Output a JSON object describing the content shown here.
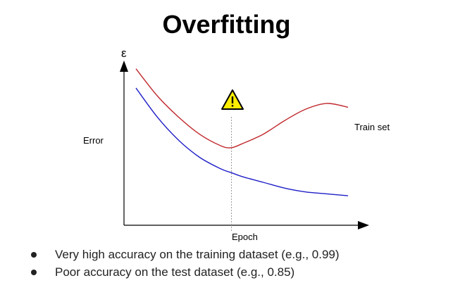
{
  "title": "Overfitting",
  "chart_data": {
    "type": "line",
    "y_axis_symbol": "ε",
    "ylabel": "Error",
    "xlabel": "Epoch",
    "grid": false,
    "warning_icon": "warning-triangle-icon",
    "series": [
      {
        "name": "Train set",
        "color": "#c0282d",
        "x": [
          0.0,
          0.1,
          0.2,
          0.3,
          0.4,
          0.45,
          0.5,
          0.6,
          0.7,
          0.8,
          0.9,
          1.0
        ],
        "y": [
          0.74,
          0.6,
          0.49,
          0.4,
          0.34,
          0.33,
          0.35,
          0.4,
          0.47,
          0.53,
          0.56,
          0.54
        ]
      },
      {
        "color": "#1e1ec8",
        "x": [
          0.0,
          0.1,
          0.2,
          0.3,
          0.4,
          0.45,
          0.5,
          0.6,
          0.7,
          0.8,
          0.9,
          1.0
        ],
        "y": [
          0.64,
          0.49,
          0.37,
          0.28,
          0.22,
          0.2,
          0.18,
          0.15,
          0.12,
          0.1,
          0.09,
          0.08
        ]
      }
    ],
    "marker_x": 0.45
  },
  "bullets": [
    "Very high accuracy on the training dataset (e.g., 0.99)",
    "Poor accuracy on the test dataset (e.g., 0.85)"
  ]
}
